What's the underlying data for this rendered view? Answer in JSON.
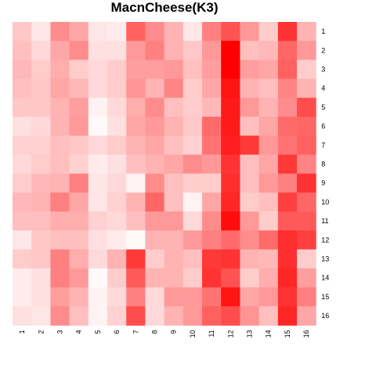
{
  "chart_data": {
    "type": "heatmap",
    "title": "MacnCheese(K3)",
    "xlabel": "",
    "ylabel": "",
    "x_labels": [
      "1",
      "2",
      "3",
      "4",
      "5",
      "6",
      "7",
      "8",
      "9",
      "10",
      "11",
      "12",
      "13",
      "14",
      "15",
      "16"
    ],
    "y_labels": [
      "1",
      "2",
      "3",
      "4",
      "5",
      "6",
      "7",
      "8",
      "9",
      "10",
      "11",
      "12",
      "13",
      "14",
      "15",
      "16"
    ],
    "color_scale": {
      "low": "#ffffff",
      "high": "#ff0000"
    },
    "value_range": [
      0,
      1
    ],
    "legend": "none",
    "grid": false,
    "values": [
      [
        0.22,
        0.1,
        0.45,
        0.35,
        0.1,
        0.08,
        0.62,
        0.45,
        0.3,
        0.1,
        0.5,
        0.68,
        0.4,
        0.2,
        0.8,
        0.3
      ],
      [
        0.25,
        0.15,
        0.35,
        0.45,
        0.12,
        0.12,
        0.4,
        0.5,
        0.3,
        0.22,
        0.4,
        1.0,
        0.25,
        0.28,
        0.6,
        0.4
      ],
      [
        0.28,
        0.2,
        0.32,
        0.2,
        0.15,
        0.2,
        0.38,
        0.38,
        0.4,
        0.25,
        0.38,
        1.0,
        0.38,
        0.35,
        0.62,
        0.2
      ],
      [
        0.25,
        0.22,
        0.35,
        0.28,
        0.15,
        0.2,
        0.42,
        0.3,
        0.48,
        0.2,
        0.35,
        0.92,
        0.3,
        0.25,
        0.48,
        0.3
      ],
      [
        0.22,
        0.22,
        0.3,
        0.38,
        0.05,
        0.15,
        0.32,
        0.45,
        0.25,
        0.2,
        0.28,
        0.9,
        0.4,
        0.3,
        0.45,
        0.7
      ],
      [
        0.12,
        0.15,
        0.3,
        0.4,
        0.02,
        0.12,
        0.35,
        0.4,
        0.3,
        0.22,
        0.58,
        0.9,
        0.25,
        0.35,
        0.58,
        0.6
      ],
      [
        0.18,
        0.18,
        0.25,
        0.22,
        0.15,
        0.2,
        0.3,
        0.35,
        0.25,
        0.18,
        0.55,
        0.88,
        0.78,
        0.4,
        0.55,
        0.62
      ],
      [
        0.15,
        0.2,
        0.25,
        0.18,
        0.08,
        0.12,
        0.25,
        0.3,
        0.35,
        0.45,
        0.4,
        0.8,
        0.25,
        0.35,
        0.78,
        0.48
      ],
      [
        0.2,
        0.28,
        0.3,
        0.5,
        0.1,
        0.15,
        0.05,
        0.45,
        0.25,
        0.2,
        0.2,
        0.82,
        0.25,
        0.4,
        0.5,
        0.8
      ],
      [
        0.28,
        0.3,
        0.5,
        0.35,
        0.1,
        0.18,
        0.3,
        0.6,
        0.25,
        0.05,
        0.35,
        0.85,
        0.2,
        0.25,
        0.75,
        0.6
      ],
      [
        0.25,
        0.25,
        0.32,
        0.32,
        0.18,
        0.15,
        0.25,
        0.4,
        0.4,
        0.15,
        0.45,
        0.95,
        0.4,
        0.2,
        0.65,
        0.65
      ],
      [
        0.1,
        0.22,
        0.25,
        0.25,
        0.12,
        0.08,
        0.02,
        0.3,
        0.3,
        0.4,
        0.5,
        0.58,
        0.45,
        0.58,
        0.82,
        0.75
      ],
      [
        0.2,
        0.22,
        0.5,
        0.32,
        0.15,
        0.3,
        0.78,
        0.2,
        0.3,
        0.25,
        0.78,
        0.8,
        0.3,
        0.28,
        0.82,
        0.2
      ],
      [
        0.08,
        0.12,
        0.5,
        0.4,
        0.02,
        0.2,
        0.65,
        0.3,
        0.3,
        0.2,
        0.8,
        0.68,
        0.2,
        0.32,
        0.85,
        0.38
      ],
      [
        0.08,
        0.12,
        0.38,
        0.3,
        0.05,
        0.15,
        0.5,
        0.15,
        0.4,
        0.4,
        0.55,
        0.92,
        0.35,
        0.4,
        0.8,
        0.5
      ],
      [
        0.12,
        0.1,
        0.45,
        0.25,
        0.05,
        0.18,
        0.7,
        0.15,
        0.3,
        0.4,
        0.62,
        0.7,
        0.42,
        0.25,
        0.85,
        0.35
      ]
    ]
  }
}
